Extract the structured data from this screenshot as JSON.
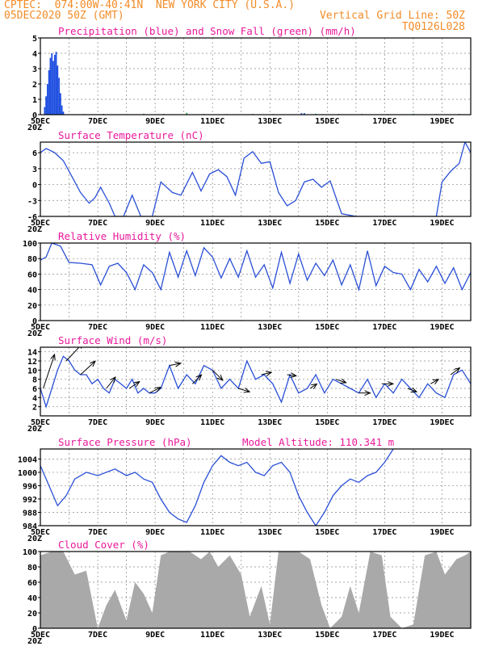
{
  "header": {
    "line1": "CPTEC:  074:00W-40:41N  NEW YORK CITY (U.S.A.)",
    "line2_left": "05DEC2020 50Z (GMT)",
    "line2_right": "Vertical Grid Line: 50Z",
    "line3_right": "TQ0126L028"
  },
  "colors": {
    "header": "#f28c28",
    "title": "#e8199a",
    "line": "#2a4fd6",
    "precip": "#1f4fe0",
    "snow": "#2fb24a",
    "cloud": "#a9a9a9"
  },
  "x_axis": {
    "ticks": [
      "5DEC",
      "7DEC",
      "9DEC",
      "11DEC",
      "13DEC",
      "15DEC",
      "17DEC",
      "19DEC"
    ],
    "cut_label": "20Z",
    "start": 5,
    "end": 20
  },
  "chart_data": [
    {
      "type": "bar",
      "title": "Precipitation (blue) and Snow Fall (green) (mm/h)",
      "ylim": [
        0,
        5
      ],
      "yticks": [
        0,
        1,
        2,
        3,
        4,
        5
      ],
      "series": [
        {
          "name": "Precipitation",
          "x": [
            5.15,
            5.2,
            5.25,
            5.3,
            5.35,
            5.4,
            5.45,
            5.5,
            5.55,
            5.6,
            5.65,
            5.7,
            5.75,
            5.8,
            14.1,
            14.2
          ],
          "values": [
            0.5,
            1.2,
            2.0,
            2.9,
            3.7,
            4.0,
            3.5,
            3.9,
            4.1,
            3.2,
            2.4,
            1.4,
            0.6,
            0.2,
            0.1,
            0.1
          ]
        },
        {
          "name": "Snow Fall",
          "x": [
            6.5,
            7.2,
            8.0,
            8.6,
            9.3,
            10.1,
            10.7,
            11.5,
            12.4,
            13.1,
            14.6,
            15.4,
            16.2,
            17.1,
            18.0,
            18.8,
            19.6
          ],
          "values": [
            0.04,
            0.05,
            0.04,
            0.06,
            0.05,
            0.12,
            0.05,
            0.04,
            0.05,
            0.04,
            0.06,
            0.05,
            0.05,
            0.04,
            0.06,
            0.05,
            0.05
          ]
        }
      ]
    },
    {
      "type": "line",
      "title": "Surface Temperature (nC)",
      "ylim": [
        -6,
        8
      ],
      "yticks": [
        -6,
        -3,
        0,
        3,
        6
      ],
      "x": [
        5.0,
        5.2,
        5.5,
        5.8,
        6.1,
        6.4,
        6.7,
        6.9,
        7.1,
        7.4,
        7.6,
        7.9,
        8.2,
        8.5,
        8.9,
        9.2,
        9.6,
        9.9,
        10.3,
        10.6,
        10.9,
        11.2,
        11.5,
        11.8,
        12.1,
        12.4,
        12.7,
        13.0,
        13.3,
        13.6,
        13.9,
        14.2,
        14.5,
        14.8,
        15.1,
        15.5,
        16.0,
        17.0,
        18.0,
        18.5,
        18.8,
        19.0,
        19.3,
        19.6,
        19.8,
        20.0
      ],
      "values": [
        6.0,
        6.8,
        6.0,
        4.5,
        1.5,
        -1.5,
        -3.5,
        -2.5,
        -0.5,
        -3.5,
        -6.0,
        -6.0,
        -2.0,
        -6.0,
        -6.0,
        0.5,
        -1.5,
        -2.0,
        2.3,
        -1.2,
        2.0,
        2.8,
        1.5,
        -2.0,
        5.0,
        6.2,
        4.0,
        4.3,
        -1.5,
        -4.0,
        -3.0,
        0.5,
        1.0,
        -0.5,
        0.7,
        -5.5,
        -6.0,
        -6.0,
        -6.0,
        -6.0,
        -6.0,
        0.5,
        2.5,
        4.0,
        8.0,
        6.0
      ]
    },
    {
      "type": "line",
      "title": "Relative Humidity (%)",
      "ylim": [
        0,
        100
      ],
      "yticks": [
        0,
        20,
        40,
        60,
        80,
        100
      ],
      "x": [
        5.0,
        5.2,
        5.4,
        5.7,
        6.0,
        6.4,
        6.8,
        7.1,
        7.4,
        7.7,
        8.0,
        8.3,
        8.6,
        8.9,
        9.2,
        9.5,
        9.8,
        10.1,
        10.4,
        10.7,
        11.0,
        11.3,
        11.6,
        11.9,
        12.2,
        12.5,
        12.8,
        13.1,
        13.4,
        13.7,
        14.0,
        14.3,
        14.6,
        14.9,
        15.2,
        15.5,
        15.8,
        16.1,
        16.4,
        16.7,
        17.0,
        17.3,
        17.6,
        17.9,
        18.2,
        18.5,
        18.8,
        19.1,
        19.4,
        19.7,
        20.0
      ],
      "values": [
        78,
        82,
        100,
        96,
        75,
        74,
        72,
        46,
        70,
        74,
        62,
        40,
        72,
        62,
        40,
        88,
        56,
        90,
        58,
        94,
        82,
        55,
        80,
        56,
        90,
        56,
        72,
        42,
        88,
        48,
        86,
        52,
        74,
        58,
        78,
        46,
        72,
        40,
        90,
        45,
        70,
        62,
        60,
        40,
        66,
        50,
        70,
        48,
        68,
        40,
        62
      ]
    },
    {
      "type": "line",
      "title": "Surface Wind (m/s)",
      "ylim": [
        0,
        15
      ],
      "yticks": [
        2,
        4,
        6,
        8,
        10,
        12,
        14
      ],
      "x": [
        5.0,
        5.2,
        5.4,
        5.6,
        5.8,
        6.0,
        6.2,
        6.4,
        6.6,
        6.8,
        7.0,
        7.2,
        7.4,
        7.6,
        7.8,
        8.0,
        8.2,
        8.4,
        8.6,
        8.8,
        9.0,
        9.2,
        9.5,
        9.8,
        10.1,
        10.4,
        10.7,
        11.0,
        11.3,
        11.6,
        11.9,
        12.2,
        12.5,
        12.8,
        13.1,
        13.4,
        13.7,
        14.0,
        14.3,
        14.6,
        14.9,
        15.2,
        15.5,
        15.8,
        16.1,
        16.4,
        16.7,
        17.0,
        17.3,
        17.6,
        17.9,
        18.2,
        18.5,
        18.8,
        19.1,
        19.4,
        19.7,
        20.0
      ],
      "values": [
        6,
        2,
        6,
        10,
        13,
        12,
        10,
        9,
        9,
        7,
        8,
        6,
        5,
        8,
        7,
        6,
        8,
        5,
        6,
        5,
        5,
        6,
        11,
        6,
        9,
        7,
        11,
        10,
        6,
        8,
        6,
        12,
        8,
        9,
        7,
        3,
        9,
        5,
        6,
        9,
        5,
        8,
        7,
        6,
        5,
        8,
        4,
        7,
        5,
        8,
        6,
        4,
        7,
        5,
        4,
        9,
        10,
        7
      ],
      "arrows": [
        {
          "x": 5.1,
          "dx": 1,
          "dy": -3
        },
        {
          "x": 5.9,
          "dx": 1.5,
          "dy": -1.6
        },
        {
          "x": 6.4,
          "dx": 1.3,
          "dy": -1.2
        },
        {
          "x": 7.3,
          "dx": 0.8,
          "dy": -1.0
        },
        {
          "x": 8.1,
          "dx": 0.9,
          "dy": -0.6
        },
        {
          "x": 8.8,
          "dx": 1,
          "dy": -0.5
        },
        {
          "x": 9.5,
          "dx": 1,
          "dy": -0.2
        },
        {
          "x": 10.3,
          "dx": 0.8,
          "dy": -0.8
        },
        {
          "x": 11.0,
          "dx": 0.9,
          "dy": 0.9
        },
        {
          "x": 11.9,
          "dx": 1,
          "dy": 0.3
        },
        {
          "x": 12.7,
          "dx": 0.9,
          "dy": -0.2
        },
        {
          "x": 13.6,
          "dx": 0.8,
          "dy": 0.1
        },
        {
          "x": 14.4,
          "dx": 0.6,
          "dy": -0.4
        },
        {
          "x": 15.3,
          "dx": 0.9,
          "dy": 0.3
        },
        {
          "x": 16.1,
          "dx": 1,
          "dy": 0
        },
        {
          "x": 16.9,
          "dx": 1,
          "dy": 0
        },
        {
          "x": 17.8,
          "dx": 0.8,
          "dy": 0.3
        },
        {
          "x": 18.6,
          "dx": 0.7,
          "dy": -0.4
        },
        {
          "x": 19.3,
          "dx": 0.8,
          "dy": -0.6
        }
      ]
    },
    {
      "type": "line",
      "title": "Surface Pressure (hPa)",
      "annotation": "Model Altitude: 110.341 m",
      "ylim": [
        984,
        1007
      ],
      "yticks": [
        984,
        988,
        992,
        996,
        1000,
        1004
      ],
      "x": [
        5.0,
        5.3,
        5.6,
        5.9,
        6.2,
        6.6,
        7.0,
        7.3,
        7.6,
        8.0,
        8.3,
        8.6,
        8.9,
        9.2,
        9.5,
        9.8,
        10.1,
        10.4,
        10.7,
        11.0,
        11.3,
        11.6,
        11.9,
        12.2,
        12.5,
        12.8,
        13.1,
        13.4,
        13.7,
        14.0,
        14.3,
        14.6,
        14.9,
        15.2,
        15.5,
        15.8,
        16.1,
        16.4,
        16.7,
        17.0,
        17.3
      ],
      "values": [
        1002,
        996,
        990,
        993,
        998,
        1000,
        999,
        1000,
        1001,
        999,
        1000,
        998,
        997,
        992,
        988,
        986,
        985,
        990,
        997,
        1002,
        1005,
        1003,
        1002,
        1003,
        1000,
        999,
        1002,
        1003,
        1000,
        993,
        988,
        984,
        988,
        993,
        996,
        998,
        997,
        999,
        1000,
        1003,
        1007
      ]
    },
    {
      "type": "area",
      "title": "Cloud Cover (%)",
      "ylim": [
        0,
        100
      ],
      "yticks": [
        0,
        20,
        40,
        60,
        80,
        100
      ],
      "x": [
        5.0,
        5.4,
        5.8,
        6.2,
        6.6,
        7.0,
        7.3,
        7.6,
        8.0,
        8.3,
        8.6,
        8.9,
        9.2,
        9.5,
        9.8,
        10.2,
        10.6,
        10.9,
        11.2,
        11.6,
        12.0,
        12.3,
        12.7,
        13.0,
        13.3,
        13.6,
        14.0,
        14.4,
        14.8,
        15.1,
        15.5,
        15.8,
        16.1,
        16.5,
        16.9,
        17.2,
        17.6,
        18.0,
        18.4,
        18.8,
        19.1,
        19.5,
        19.8,
        20.0
      ],
      "values": [
        95,
        100,
        100,
        70,
        75,
        0,
        30,
        50,
        10,
        60,
        45,
        20,
        95,
        100,
        100,
        100,
        90,
        100,
        80,
        95,
        70,
        15,
        55,
        5,
        100,
        100,
        100,
        90,
        30,
        0,
        15,
        55,
        20,
        100,
        95,
        15,
        0,
        5,
        95,
        100,
        70,
        90,
        95,
        100
      ]
    }
  ]
}
